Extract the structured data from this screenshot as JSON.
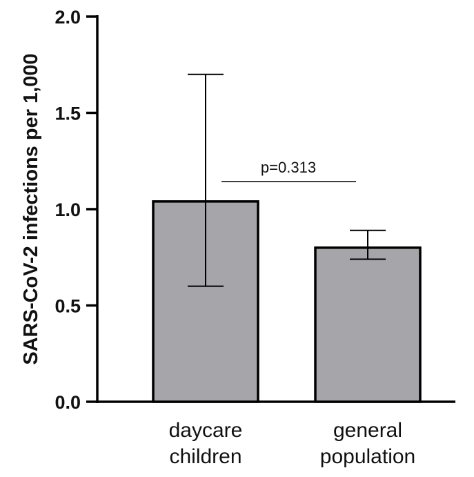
{
  "chart_data": {
    "type": "bar",
    "categories": [
      [
        "daycare",
        "children"
      ],
      [
        "general",
        "population"
      ]
    ],
    "values": [
      1.04,
      0.8
    ],
    "error_low": [
      0.6,
      0.74
    ],
    "error_high": [
      1.7,
      0.89
    ],
    "ylabel": "SARS-CoV-2 infections per 1,000",
    "ylim": [
      0.0,
      2.0
    ],
    "yticks": [
      "0.0",
      "0.5",
      "1.0",
      "1.5",
      "2.0"
    ],
    "annotation": {
      "text": "p=0.313"
    },
    "grid": false,
    "bar_color": "#a6a5aa",
    "bar_edge_color": "#000000"
  }
}
